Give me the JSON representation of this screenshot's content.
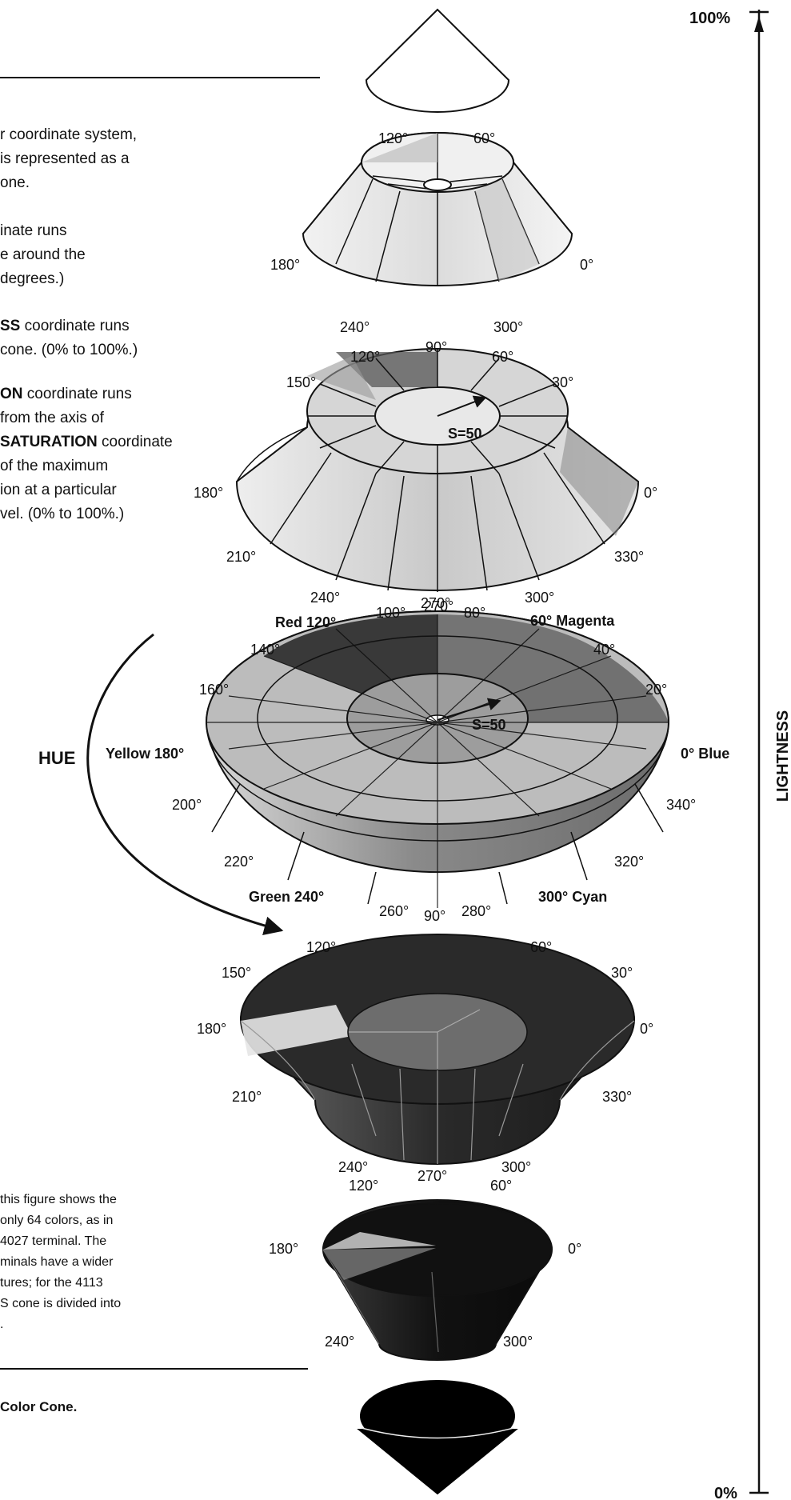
{
  "intro": {
    "p1": [
      "r coordinate system,",
      " is represented as a",
      "one."
    ],
    "p2": [
      "inate runs",
      "e around the",
      " degrees.)"
    ],
    "p3_bold": "SS",
    "p3": [
      " coordinate runs",
      " cone. (0% to 100%.)"
    ],
    "p4_bold1": "ON",
    "p4_l1": " coordinate runs",
    "p4_l2": " from the axis of",
    "p4_bold2": "SATURATION",
    "p4_l3": " coordinate",
    "p4_rest": [
      " of the maximum",
      "ion at a particular",
      "vel. (0% to 100%.)"
    ]
  },
  "note": [
    "this figure shows the",
    "only 64 colors, as in",
    "4027 terminal. The",
    "minals have a wider",
    "tures; for the 4113",
    "S cone is divided into",
    "."
  ],
  "caption": "Color Cone.",
  "lightness": {
    "label": "LIGHTNESS",
    "top": "100%",
    "bottom": "0%"
  },
  "hue_label": "HUE",
  "cone2": {
    "a120": "120°",
    "a60": "60°",
    "a180": "180°",
    "a0": "0°",
    "a240": "240°",
    "a300": "300°"
  },
  "cone3": {
    "a120": "120°",
    "a90": "90°",
    "a60": "60°",
    "a150": "150°",
    "a30": "30°",
    "a180": "180°",
    "a0": "0°",
    "a210": "210°",
    "a330": "330°",
    "a240": "240°",
    "a270": "270°",
    "a300": "300°",
    "s": "S=50"
  },
  "cone4": {
    "red": "Red 120°",
    "magenta": "60° Magenta",
    "a100": "100°",
    "a90": "90°",
    "a80": "80°",
    "a140": "140°",
    "a40": "40°",
    "a160": "160°",
    "a20": "20°",
    "yellow": "Yellow 180°",
    "blue": "0° Blue",
    "a200": "200°",
    "a340": "340°",
    "a220": "220°",
    "a320": "320°",
    "green": "Green 240°",
    "cyan": "300° Cyan",
    "a260": "260°",
    "a270": "270°",
    "a280": "280°",
    "s": "S=50"
  },
  "cone5": {
    "a120": "120°",
    "a60": "60°",
    "a150": "150°",
    "a30": "30°",
    "a180": "180°",
    "a0": "0°",
    "a210": "210°",
    "a330": "330°",
    "a240": "240°",
    "a270": "270°",
    "a300": "300°"
  },
  "cone6": {
    "a120": "120°",
    "a60": "60°",
    "a180": "180°",
    "a0": "0°",
    "a240": "240°",
    "a300": "300°"
  }
}
